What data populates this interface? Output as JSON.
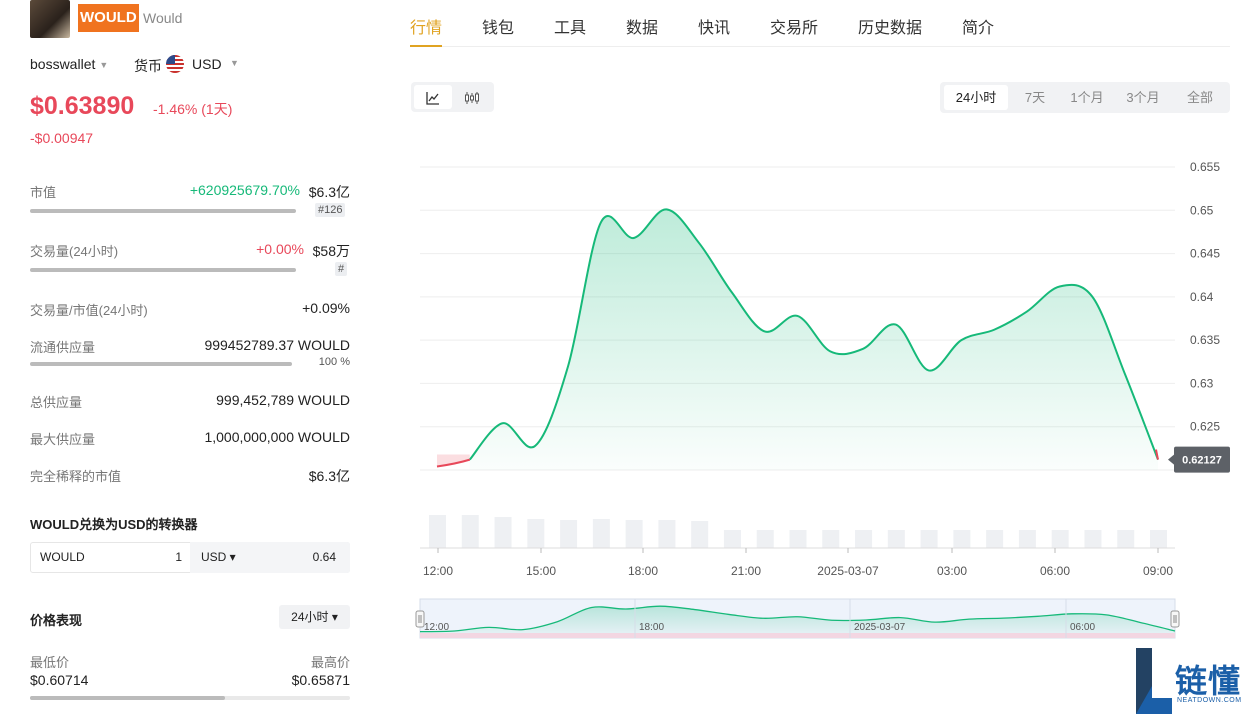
{
  "token": {
    "symbol": "WOULD",
    "name": "Would"
  },
  "wallet": {
    "name": "bosswallet"
  },
  "currency": {
    "label": "货币",
    "value": "USD"
  },
  "price": {
    "current": "$0.63890",
    "change_pct": "-1.46% (1天)",
    "change_abs": "-$0.00947"
  },
  "stats": [
    {
      "label": "市值",
      "change": "+620925679.70%",
      "value": "$6.3亿",
      "tag": "#126",
      "bar": 0.83
    },
    {
      "label": "交易量(24小时)",
      "change": "+0.00%",
      "value": "$58万",
      "tag": "#",
      "bar": 0.83
    },
    {
      "label": "交易量/市值(24小时)",
      "value": "+0.09%"
    },
    {
      "label": "流通供应量",
      "value": "999452789.37 WOULD",
      "tag": "100 %",
      "bar": 0.81
    },
    {
      "label": "总供应量",
      "value": "999,452,789 WOULD"
    },
    {
      "label": "最大供应量",
      "value": "1,000,000,000 WOULD"
    },
    {
      "label": "完全稀释的市值",
      "value": "$6.3亿"
    }
  ],
  "converter": {
    "title": "WOULD兑换为USD的转换器",
    "from": "WOULD",
    "amount": "1",
    "to": "USD ▾",
    "result": "0.64"
  },
  "performance": {
    "title": "价格表现",
    "period": "24小时 ▾",
    "low_label": "最低价",
    "low": "$0.60714",
    "high_label": "最高价",
    "high": "$0.65871",
    "position": 0.61
  },
  "tabs": [
    "行情",
    "钱包",
    "工具",
    "数据",
    "快讯",
    "交易所",
    "历史数据",
    "简介"
  ],
  "active_tab": 0,
  "chart_type_buttons": {
    "line": "line-chart-icon",
    "candle": "candlestick-icon"
  },
  "ranges": [
    "24小时",
    "7天",
    "1个月",
    "3个月",
    "全部"
  ],
  "active_range": 0,
  "colors": {
    "up": "#16b979",
    "down": "#e8485a",
    "accent": "#e0a321",
    "badge": "#f0731f"
  },
  "watermark": {
    "text": "链懂",
    "sub": "NEATDOWN.COM"
  },
  "chart_data": {
    "type": "area",
    "ylim": [
      0.62,
      0.655
    ],
    "y_ticks": [
      "0.655",
      "0.65",
      "0.645",
      "0.64",
      "0.635",
      "0.63",
      "0.625"
    ],
    "x_ticks": [
      "12:00",
      "15:00",
      "18:00",
      "21:00",
      "2025-03-07",
      "03:00",
      "06:00",
      "09:00"
    ],
    "last_value": "0.62127",
    "x": [
      0,
      1,
      2,
      3,
      4,
      5,
      6,
      7,
      8,
      9,
      10,
      11,
      12,
      13,
      14,
      15,
      16,
      17,
      18,
      19,
      20,
      21,
      22
    ],
    "values": [
      0.6204,
      0.6212,
      0.6254,
      0.6228,
      0.632,
      0.6486,
      0.6468,
      0.6501,
      0.6462,
      0.6405,
      0.636,
      0.6378,
      0.6337,
      0.634,
      0.6368,
      0.6315,
      0.635,
      0.6362,
      0.6383,
      0.6412,
      0.64,
      0.631,
      0.6212
    ],
    "volume": [
      0.33,
      0.33,
      0.31,
      0.29,
      0.28,
      0.29,
      0.28,
      0.28,
      0.27,
      0.18,
      0.18,
      0.18,
      0.18,
      0.18,
      0.18,
      0.18,
      0.18,
      0.18,
      0.18,
      0.18,
      0.18,
      0.18,
      0.18
    ],
    "navigator_ticks": [
      "12:00",
      "18:00",
      "2025-03-07",
      "06:00"
    ]
  }
}
